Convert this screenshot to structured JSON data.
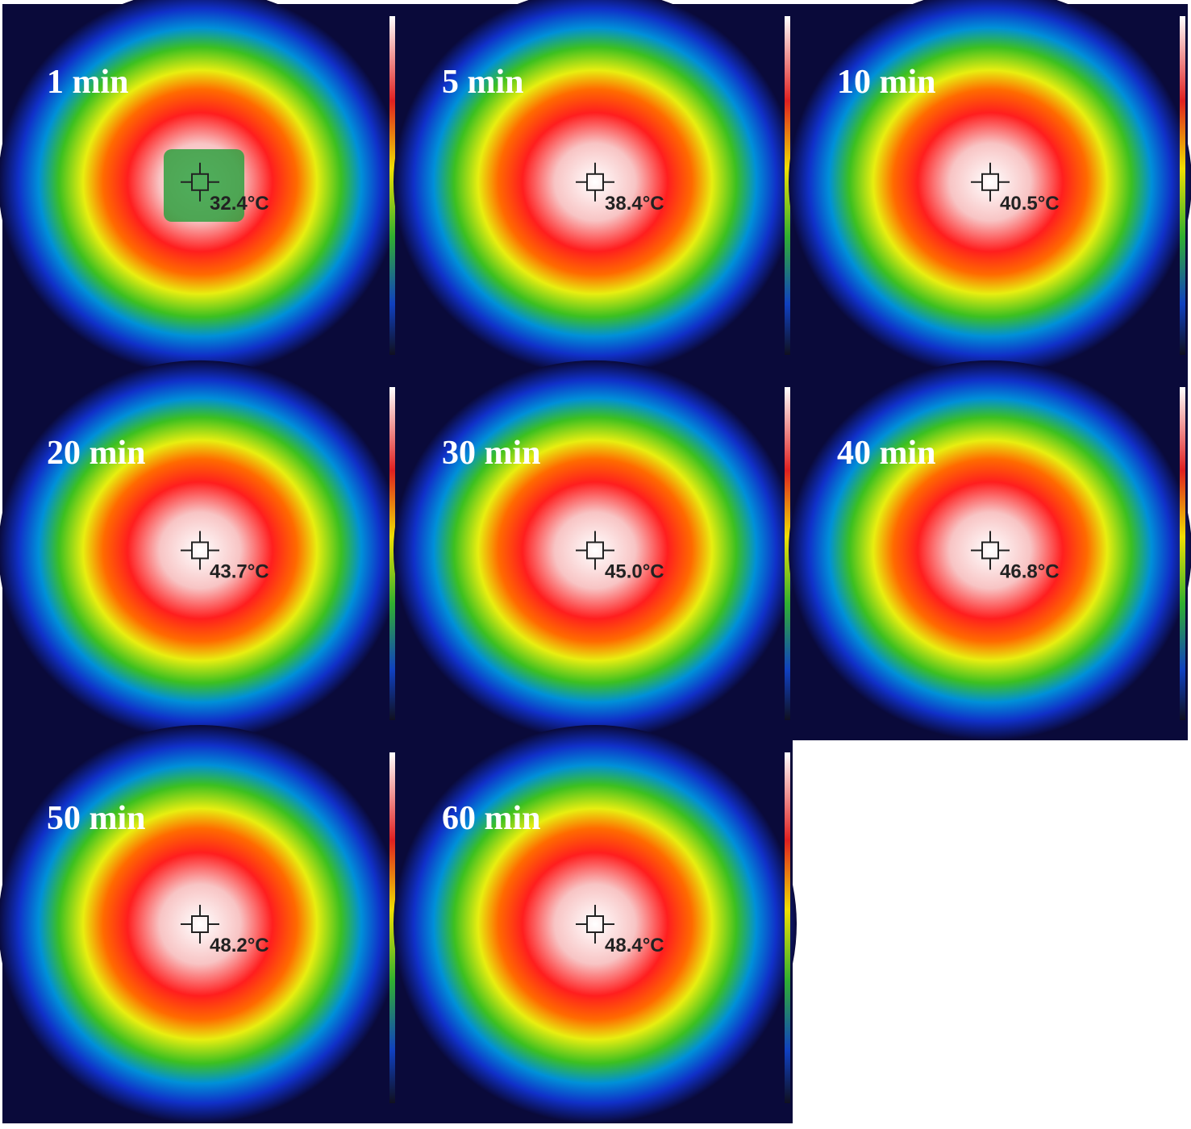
{
  "panels": [
    {
      "time": "1 min",
      "temperature": "32.4°C"
    },
    {
      "time": "5 min",
      "temperature": "38.4°C"
    },
    {
      "time": "10 min",
      "temperature": "40.5°C"
    },
    {
      "time": "20 min",
      "temperature": "43.7°C"
    },
    {
      "time": "30 min",
      "temperature": "45.0°C"
    },
    {
      "time": "40 min",
      "temperature": "46.8°C"
    },
    {
      "time": "50 min",
      "temperature": "48.2°C"
    },
    {
      "time": "60 min",
      "temperature": "48.4°C"
    }
  ]
}
